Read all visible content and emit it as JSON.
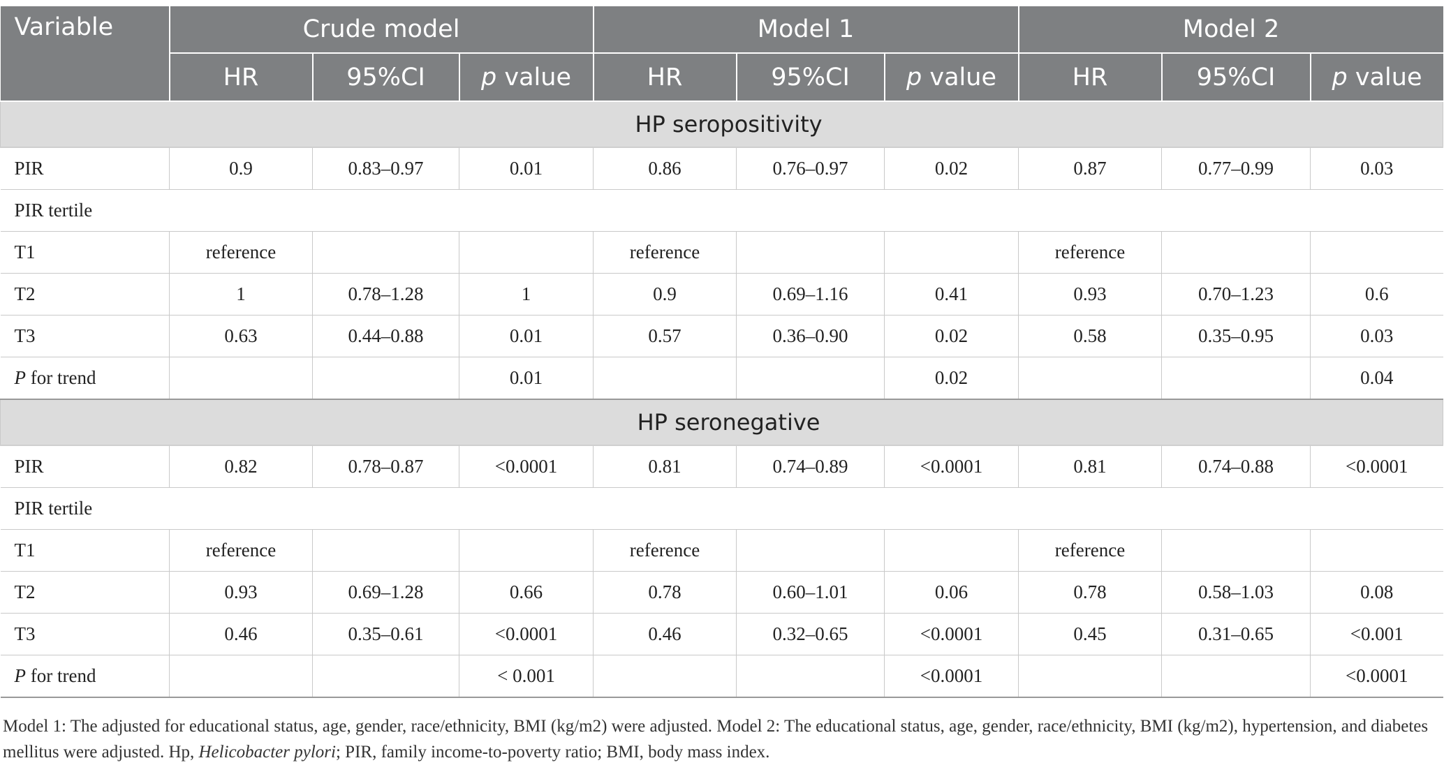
{
  "header": {
    "variable": "Variable",
    "groups": [
      "Crude model",
      "Model 1",
      "Model 2"
    ],
    "sub": [
      "HR",
      "95%CI",
      "value"
    ],
    "p_letter": "p"
  },
  "sections": [
    {
      "title": "HP seropositivity",
      "pir": {
        "label": "PIR",
        "cells": [
          "0.9",
          "0.83–0.97",
          "0.01",
          "0.86",
          "0.76–0.97",
          "0.02",
          "0.87",
          "0.77–0.99",
          "0.03"
        ]
      },
      "tertile_label": "PIR tertile",
      "t1": {
        "label": "T1",
        "cells": [
          "reference",
          "",
          "",
          "reference",
          "",
          "",
          "reference",
          "",
          ""
        ]
      },
      "t2": {
        "label": "T2",
        "cells": [
          "1",
          "0.78–1.28",
          "1",
          "0.9",
          "0.69–1.16",
          "0.41",
          "0.93",
          "0.70–1.23",
          "0.6"
        ]
      },
      "t3": {
        "label": "T3",
        "cells": [
          "0.63",
          "0.44–0.88",
          "0.01",
          "0.57",
          "0.36–0.90",
          "0.02",
          "0.58",
          "0.35–0.95",
          "0.03"
        ]
      },
      "trend": {
        "label_p": "P",
        "label_rest": " for trend",
        "cells": [
          "",
          "",
          "0.01",
          "",
          "",
          "0.02",
          "",
          "",
          "0.04"
        ]
      }
    },
    {
      "title": "HP seronegative",
      "pir": {
        "label": "PIR",
        "cells": [
          "0.82",
          "0.78–0.87",
          "<0.0001",
          "0.81",
          "0.74–0.89",
          "<0.0001",
          "0.81",
          "0.74–0.88",
          "<0.0001"
        ]
      },
      "tertile_label": "PIR tertile",
      "t1": {
        "label": "T1",
        "cells": [
          "reference",
          "",
          "",
          "reference",
          "",
          "",
          "reference",
          "",
          ""
        ]
      },
      "t2": {
        "label": "T2",
        "cells": [
          "0.93",
          "0.69–1.28",
          "0.66",
          "0.78",
          "0.60–1.01",
          "0.06",
          "0.78",
          "0.58–1.03",
          "0.08"
        ]
      },
      "t3": {
        "label": "T3",
        "cells": [
          "0.46",
          "0.35–0.61",
          "<0.0001",
          "0.46",
          "0.32–0.65",
          "<0.0001",
          "0.45",
          "0.31–0.65",
          "<0.001"
        ]
      },
      "trend": {
        "label_p": "P",
        "label_rest": " for trend",
        "cells": [
          "",
          "",
          "< 0.001",
          "",
          "",
          "<0.0001",
          "",
          "",
          "<0.0001"
        ]
      }
    }
  ],
  "footnote": {
    "part1": "Model 1: The adjusted for educational status, age, gender, race/ethnicity, BMI (kg/m2) were adjusted. Model 2: The educational status, age, gender, race/ethnicity, BMI (kg/m2), hypertension, and diabetes mellitus were adjusted. Hp, ",
    "italic": "Helicobacter pylori",
    "part2": "; PIR, family income-to-poverty ratio; BMI, body mass index."
  }
}
